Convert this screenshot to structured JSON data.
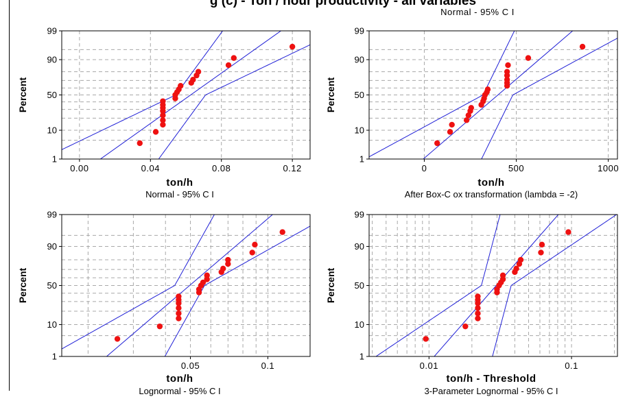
{
  "page": {
    "title": "g (c) - Ton / hour productivity - all variables",
    "top_caption": "Normal - 95% C I"
  },
  "colors": {
    "fit": "#1f1fd6",
    "ci": "#1f1fd6",
    "points": "#ee1111",
    "grid": "#a8a8a8"
  },
  "chart_data": [
    {
      "type": "scatter",
      "title": "",
      "xlabel": "ton/h",
      "ylabel": "Percent",
      "caption": "Normal - 95% C I",
      "x_scale": "linear",
      "xlim": [
        -0.01,
        0.13
      ],
      "x_ticks": [
        0.0,
        0.04,
        0.08,
        0.12
      ],
      "x_tick_labels": [
        "0.00",
        "0.04",
        "0.08",
        "0.12"
      ],
      "x_minor_grid": [],
      "y_scale": "normal-probability",
      "y_ticks": [
        1,
        10,
        50,
        90,
        99
      ],
      "y_tick_labels": [
        "1",
        "10",
        "50",
        "90",
        "99"
      ],
      "y_grid": [
        1,
        5,
        10,
        20,
        30,
        40,
        50,
        60,
        70,
        80,
        90,
        95,
        99
      ],
      "ci_coeff": [
        0.24,
        0.3
      ],
      "points": [
        [
          0.034,
          4
        ],
        [
          0.043,
          9
        ],
        [
          0.047,
          14
        ],
        [
          0.047,
          18
        ],
        [
          0.047,
          23
        ],
        [
          0.047,
          28
        ],
        [
          0.047,
          32
        ],
        [
          0.047,
          36
        ],
        [
          0.047,
          41
        ],
        [
          0.054,
          45
        ],
        [
          0.054,
          50
        ],
        [
          0.055,
          54
        ],
        [
          0.056,
          58
        ],
        [
          0.057,
          63
        ],
        [
          0.063,
          67
        ],
        [
          0.064,
          71
        ],
        [
          0.066,
          76
        ],
        [
          0.067,
          80
        ],
        [
          0.084,
          86
        ],
        [
          0.087,
          91
        ],
        [
          0.12,
          96
        ]
      ],
      "fit_line": [
        [
          0.01,
          0.8
        ],
        [
          0.119,
          99.5
        ]
      ]
    },
    {
      "type": "scatter",
      "title": "",
      "xlabel": "ton/h",
      "ylabel": "Percent",
      "caption": "After Box-C ox transformation (lambda = -2)",
      "x_scale": "linear",
      "xlim": [
        -300,
        1050
      ],
      "x_ticks": [
        0,
        500,
        1000
      ],
      "x_tick_labels": [
        "0",
        "500",
        "1000"
      ],
      "x_minor_grid": [],
      "y_scale": "normal-probability",
      "y_ticks": [
        1,
        10,
        50,
        90,
        99
      ],
      "y_tick_labels": [
        "1",
        "10",
        "50",
        "90",
        "99"
      ],
      "y_grid": [
        1,
        5,
        10,
        20,
        30,
        40,
        50,
        60,
        70,
        80,
        90,
        95,
        99
      ],
      "ci_coeff": [
        0.24,
        0.3
      ],
      "points": [
        [
          70,
          4
        ],
        [
          140,
          9
        ],
        [
          150,
          14
        ],
        [
          230,
          18
        ],
        [
          240,
          23
        ],
        [
          250,
          28
        ],
        [
          255,
          32
        ],
        [
          310,
          36
        ],
        [
          320,
          41
        ],
        [
          325,
          45
        ],
        [
          330,
          50
        ],
        [
          340,
          54
        ],
        [
          345,
          58
        ],
        [
          450,
          63
        ],
        [
          450,
          67
        ],
        [
          450,
          71
        ],
        [
          450,
          76
        ],
        [
          450,
          80
        ],
        [
          455,
          86
        ],
        [
          565,
          91
        ],
        [
          860,
          96
        ]
      ],
      "fit_line": [
        [
          -20,
          0.8
        ],
        [
          850,
          99.5
        ]
      ]
    },
    {
      "type": "scatter",
      "title": "",
      "xlabel": "ton/h",
      "ylabel": "Percent",
      "caption": "Lognormal - 95% C I",
      "x_scale": "log",
      "xlim": [
        0.0158,
        0.146
      ],
      "x_ticks": [
        0.05,
        0.1
      ],
      "x_tick_labels": [
        "0.05",
        "0.1"
      ],
      "x_minor_grid": [
        0.02,
        0.03,
        0.04,
        0.06,
        0.07,
        0.08,
        0.09
      ],
      "y_scale": "normal-probability",
      "y_ticks": [
        1,
        10,
        50,
        90,
        99
      ],
      "y_tick_labels": [
        "1",
        "10",
        "50",
        "90",
        "99"
      ],
      "y_grid": [
        1,
        5,
        10,
        20,
        30,
        40,
        50,
        60,
        70,
        80,
        90,
        95,
        99
      ],
      "ci_coeff": [
        0.24,
        0.3
      ],
      "points": [
        [
          0.026,
          4
        ],
        [
          0.038,
          9
        ],
        [
          0.045,
          14
        ],
        [
          0.045,
          18
        ],
        [
          0.045,
          23
        ],
        [
          0.045,
          28
        ],
        [
          0.045,
          32
        ],
        [
          0.045,
          36
        ],
        [
          0.054,
          41
        ],
        [
          0.054,
          45
        ],
        [
          0.055,
          50
        ],
        [
          0.056,
          54
        ],
        [
          0.058,
          58
        ],
        [
          0.058,
          63
        ],
        [
          0.066,
          67
        ],
        [
          0.067,
          71
        ],
        [
          0.07,
          76
        ],
        [
          0.07,
          80
        ],
        [
          0.087,
          86
        ],
        [
          0.089,
          91
        ],
        [
          0.114,
          96
        ]
      ],
      "fit_line": [
        [
          0.023,
          0.8
        ],
        [
          0.113,
          99.5
        ]
      ]
    },
    {
      "type": "scatter",
      "title": "",
      "xlabel": "ton/h - Threshold",
      "ylabel": "Percent",
      "caption": "3-Parameter Lognormal - 95% C I",
      "x_scale": "log",
      "xlim": [
        0.0038,
        0.21
      ],
      "x_ticks": [
        0.01,
        0.1
      ],
      "x_tick_labels": [
        "0.01",
        "0.1"
      ],
      "x_minor_grid": [
        0.004,
        0.005,
        0.006,
        0.007,
        0.008,
        0.009,
        0.02,
        0.03,
        0.04,
        0.05,
        0.06,
        0.07,
        0.08,
        0.09,
        0.2
      ],
      "y_scale": "normal-probability",
      "y_ticks": [
        1,
        10,
        50,
        90,
        99
      ],
      "y_tick_labels": [
        "1",
        "10",
        "50",
        "90",
        "99"
      ],
      "y_grid": [
        1,
        5,
        10,
        20,
        30,
        40,
        50,
        60,
        70,
        80,
        90,
        95,
        99
      ],
      "ci_coeff": [
        0.24,
        0.3
      ],
      "points": [
        [
          0.0095,
          4
        ],
        [
          0.018,
          9
        ],
        [
          0.022,
          14
        ],
        [
          0.022,
          18
        ],
        [
          0.022,
          23
        ],
        [
          0.022,
          28
        ],
        [
          0.022,
          32
        ],
        [
          0.022,
          36
        ],
        [
          0.03,
          41
        ],
        [
          0.03,
          45
        ],
        [
          0.031,
          50
        ],
        [
          0.032,
          54
        ],
        [
          0.033,
          58
        ],
        [
          0.033,
          63
        ],
        [
          0.04,
          67
        ],
        [
          0.041,
          71
        ],
        [
          0.043,
          76
        ],
        [
          0.044,
          80
        ],
        [
          0.061,
          86
        ],
        [
          0.062,
          91
        ],
        [
          0.095,
          96
        ]
      ],
      "fit_line": [
        [
          0.0105,
          0.8
        ],
        [
          0.09,
          99.5
        ]
      ]
    }
  ]
}
